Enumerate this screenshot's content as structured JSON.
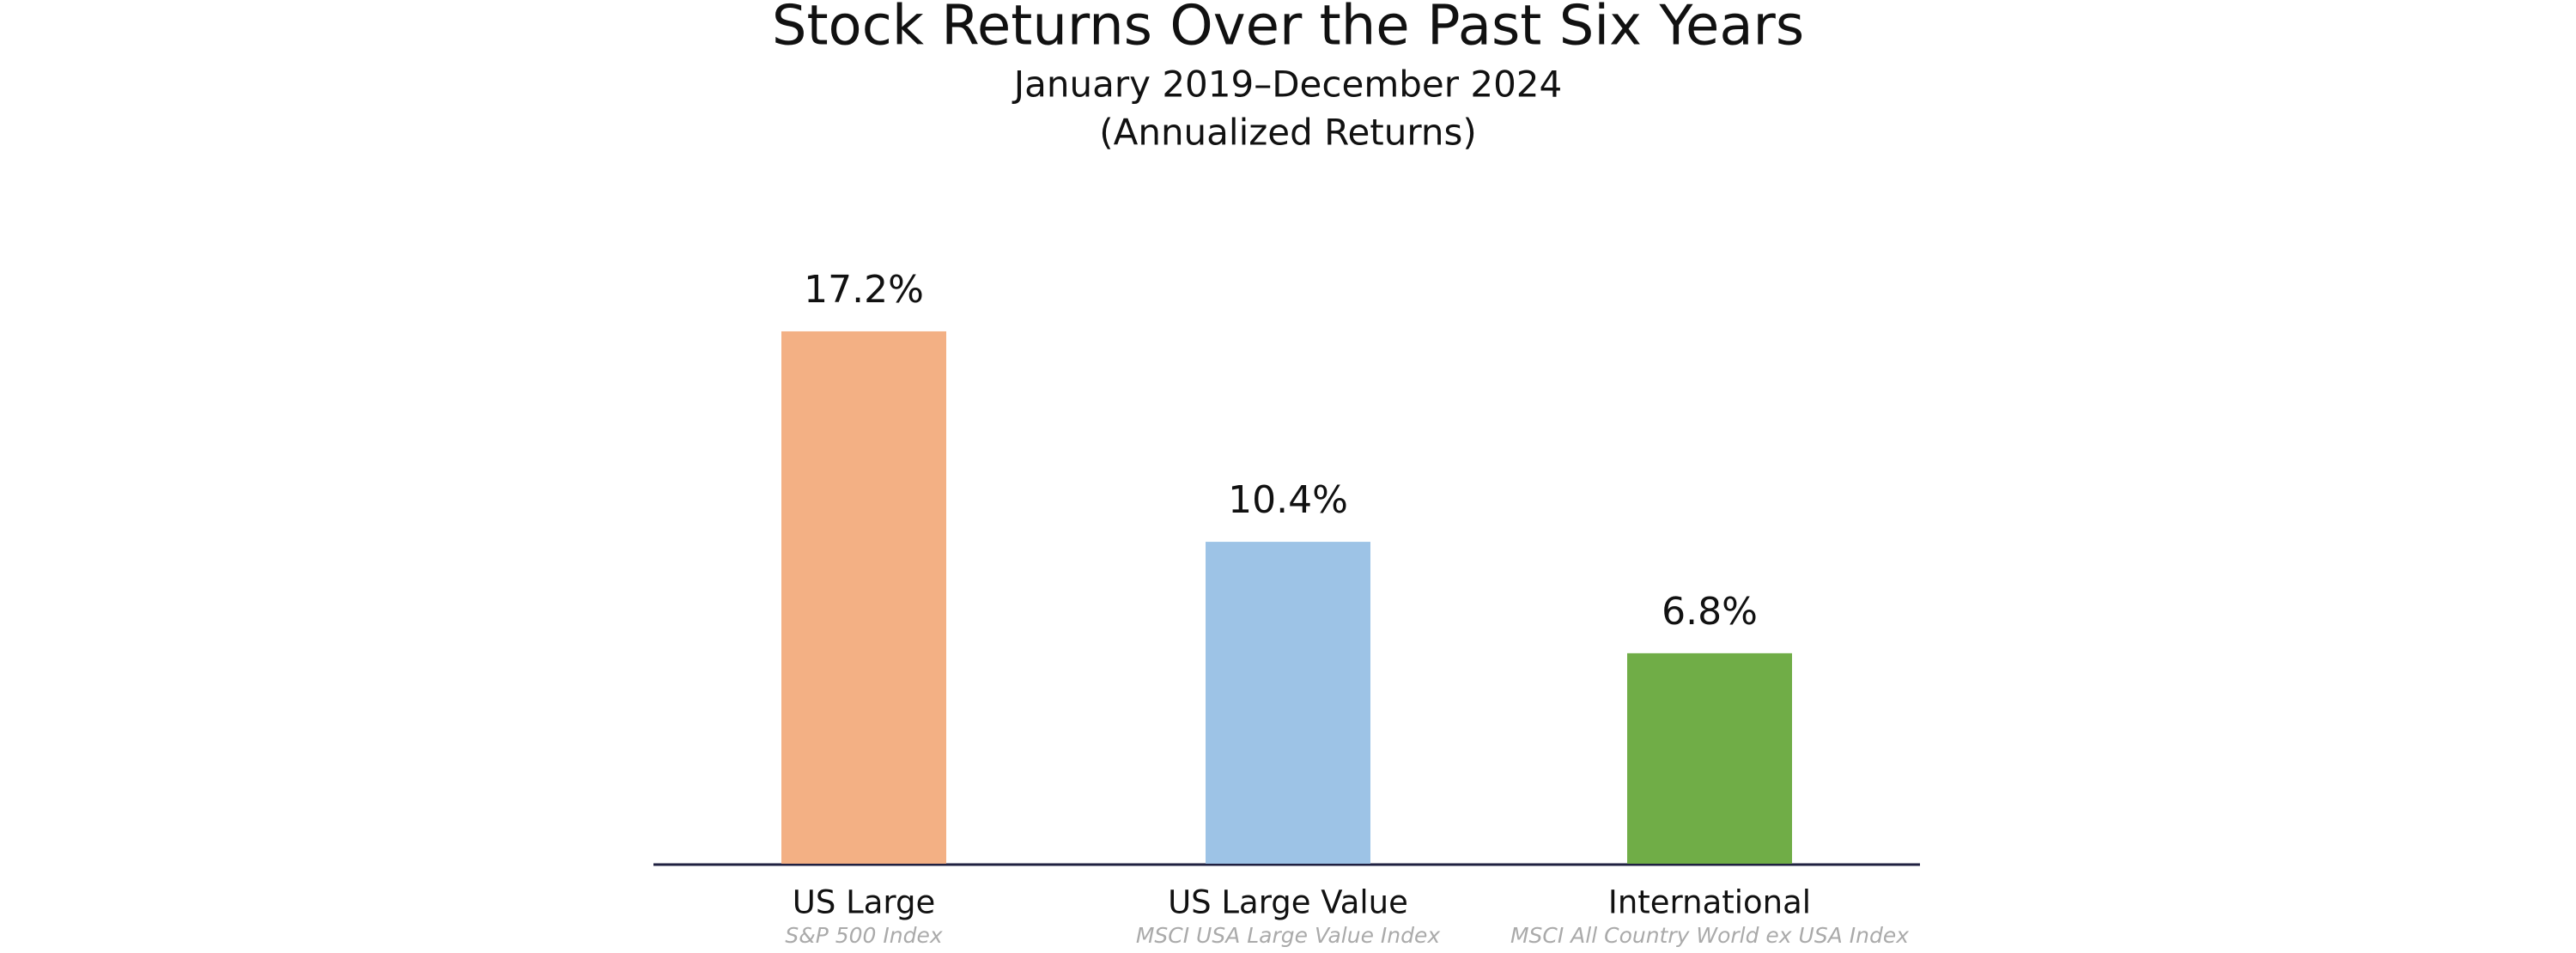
{
  "chart_data": {
    "type": "bar",
    "title": "Stock Returns Over the Past Six Years",
    "subtitle": [
      "January 2019–December 2024",
      "(Annualized Returns)"
    ],
    "categories": [
      "US Large",
      "US Large Value",
      "International"
    ],
    "category_notes": [
      "S&P 500 Index",
      "MSCI USA Large Value Index",
      "MSCI All Country World ex USA Index"
    ],
    "values": [
      17.2,
      10.4,
      6.8
    ],
    "value_labels": [
      "17.2%",
      "10.4%",
      "6.8%"
    ],
    "colors": [
      "#f3b084",
      "#9dc3e6",
      "#70ad47"
    ]
  }
}
